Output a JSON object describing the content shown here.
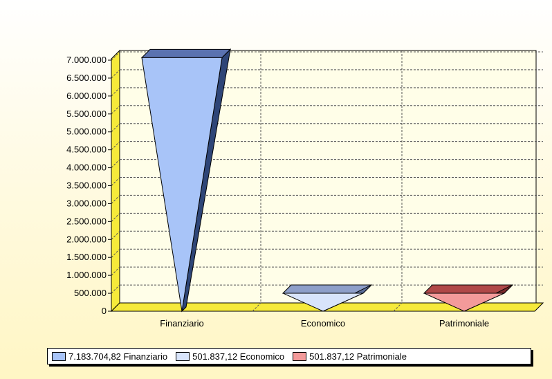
{
  "chart_data": {
    "type": "bar",
    "categories": [
      "Finanziario",
      "Economico",
      "Patrimoniale"
    ],
    "values": [
      7183704.82,
      501837.12,
      501837.12
    ],
    "ylim": [
      0,
      7000000
    ],
    "yticks": [
      "0",
      "500.000",
      "1.000.000",
      "1.500.000",
      "2.000.000",
      "2.500.000",
      "3.000.000",
      "3.500.000",
      "4.000.000",
      "4.500.000",
      "5.000.000",
      "5.500.000",
      "6.000.000",
      "6.500.000",
      "7.000.000"
    ],
    "grid": true,
    "legend_placement": "bottom",
    "colors": [
      "#a8c4f8",
      "#d8e4fb",
      "#f39a9a"
    ],
    "top_colors": [
      "#5a72b0",
      "#8e9fc9",
      "#b04848"
    ],
    "side_colors": [
      "#2e4577",
      "#5a6d99",
      "#7a2a2a"
    ]
  },
  "legend": {
    "items": [
      {
        "label": "7.183.704,82 Finanziario"
      },
      {
        "label": "501.837,12 Economico"
      },
      {
        "label": "501.837,12 Patrimoniale"
      }
    ]
  }
}
